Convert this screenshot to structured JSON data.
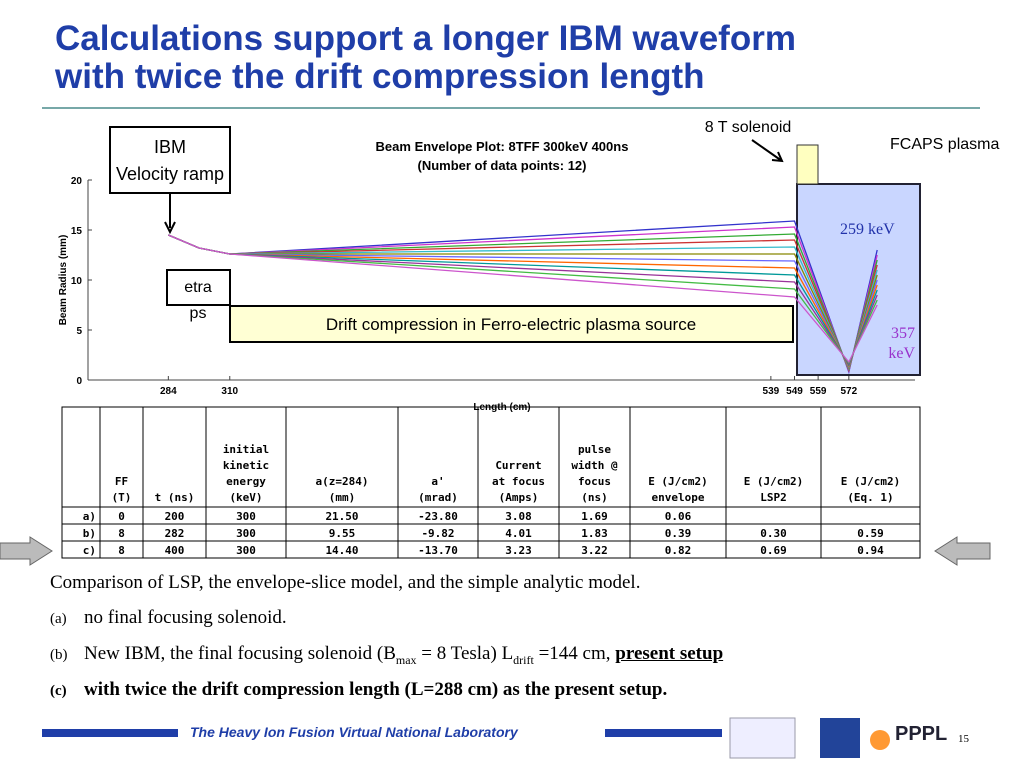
{
  "title": [
    "Calculations support a longer IBM waveform",
    "with twice the drift compression length"
  ],
  "plot": {
    "title": [
      "Beam Envelope Plot: 8TFF 300keV 400ns",
      "(Number of data points: 12)"
    ],
    "xlabel": "Length (cm)",
    "ylabel": "Beam Radius (mm)",
    "xlim": [
      250,
      600
    ],
    "ylim": [
      0,
      20
    ],
    "yticks": [
      0,
      5,
      10,
      15,
      20
    ],
    "xticks": [
      284,
      310,
      539,
      549,
      559,
      572
    ],
    "x": [
      284,
      297,
      310,
      549,
      572,
      584
    ],
    "series": [
      {
        "color": "#3333cc",
        "values": [
          14.5,
          13.2,
          12.6,
          15.9,
          0.8,
          13.0
        ]
      },
      {
        "color": "#cc33cc",
        "values": [
          14.5,
          13.2,
          12.6,
          15.3,
          0.9,
          12.5
        ]
      },
      {
        "color": "#33aa33",
        "values": [
          14.5,
          13.2,
          12.6,
          14.6,
          1.0,
          12.0
        ]
      },
      {
        "color": "#cc3333",
        "values": [
          14.5,
          13.2,
          12.6,
          14.0,
          1.0,
          11.5
        ]
      },
      {
        "color": "#33bbcc",
        "values": [
          14.5,
          13.2,
          12.6,
          13.3,
          1.1,
          11.0
        ]
      },
      {
        "color": "#888800",
        "values": [
          14.5,
          13.2,
          12.6,
          12.6,
          1.2,
          10.5
        ]
      },
      {
        "color": "#6666ff",
        "values": [
          14.5,
          13.2,
          12.6,
          11.9,
          1.3,
          10.0
        ]
      },
      {
        "color": "#ff6600",
        "values": [
          14.5,
          13.2,
          12.6,
          11.2,
          1.4,
          9.5
        ]
      },
      {
        "color": "#009999",
        "values": [
          14.5,
          13.2,
          12.6,
          10.5,
          1.5,
          9.0
        ]
      },
      {
        "color": "#993399",
        "values": [
          14.5,
          13.2,
          12.6,
          9.8,
          1.6,
          8.5
        ]
      },
      {
        "color": "#44bb44",
        "values": [
          14.5,
          13.2,
          12.6,
          9.1,
          1.7,
          8.0
        ]
      },
      {
        "color": "#cc55cc",
        "values": [
          14.5,
          13.2,
          12.6,
          8.3,
          1.8,
          7.5
        ]
      }
    ],
    "annotations": {
      "ibm": [
        "IBM",
        "Velocity ramp"
      ],
      "solenoid": "8 T solenoid",
      "fcaps": "FCAPS plasma",
      "e1": "259 keV",
      "e2": [
        "357",
        "keV"
      ],
      "extra": [
        "etra",
        "ps"
      ],
      "drift": "Drift compression in Ferro-electric plasma source"
    }
  },
  "table": {
    "header": [
      [],
      [
        "FF",
        "(T)"
      ],
      [
        "t (ns)"
      ],
      [
        "initial",
        "kinetic",
        "energy",
        "(keV)"
      ],
      [
        "a(z=284)",
        "(mm)"
      ],
      [
        "a'",
        "(mrad)"
      ],
      [
        "Current",
        "at focus",
        "(Amps)"
      ],
      [
        "pulse",
        "width @",
        "focus",
        "(ns)"
      ],
      [
        "E (J/cm2)",
        "envelope"
      ],
      [
        "E (J/cm2)",
        "LSP2"
      ],
      [
        "E (J/cm2)",
        "(Eq. 1)"
      ]
    ],
    "rows": [
      [
        "a)",
        "0",
        "200",
        "300",
        "21.50",
        "-23.80",
        "3.08",
        "1.69",
        "0.06",
        null,
        null
      ],
      [
        "b)",
        "8",
        "282",
        "300",
        "9.55",
        "-9.82",
        "4.01",
        "1.83",
        "0.39",
        "0.30",
        "0.59"
      ],
      [
        "c)",
        "8",
        "400",
        "300",
        "14.40",
        "-13.70",
        "3.23",
        "3.22",
        "0.82",
        "0.69",
        "0.94"
      ]
    ]
  },
  "text": {
    "caption": "Comparison of LSP, the envelope-slice model, and the simple analytic model.",
    "items": [
      {
        "label": "(a)",
        "parts": [
          "no final focusing solenoid."
        ]
      },
      {
        "label": "(b)",
        "parts": [
          "New IBM, the final focusing solenoid (B",
          "max",
          " = 8 Tesla) L",
          "drift",
          " =144 cm, ",
          "present setup"
        ]
      },
      {
        "label": "(c)",
        "parts": [
          "with twice the drift compression length (L=288 cm) as the present setup."
        ]
      }
    ]
  },
  "footer": {
    "lab": "The Heavy Ion Fusion Virtual National Laboratory",
    "page": "15",
    "logo": "PPPL"
  }
}
